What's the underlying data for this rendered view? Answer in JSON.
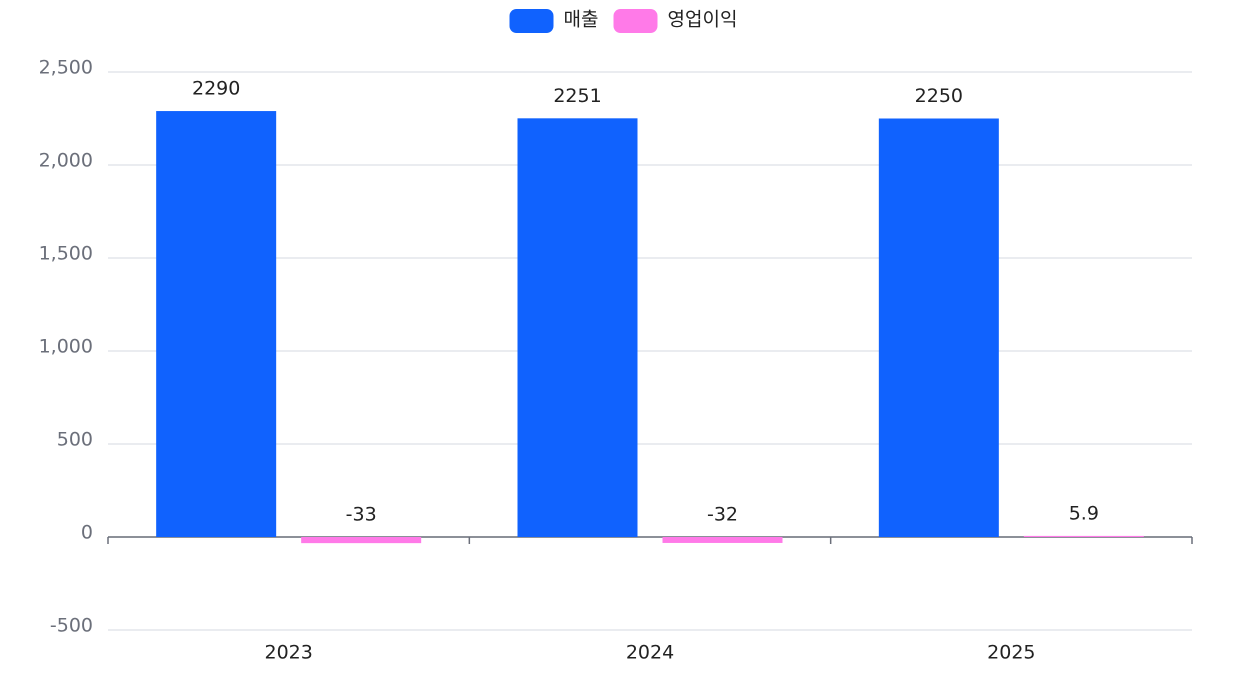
{
  "chart_data": {
    "type": "bar",
    "categories": [
      "2023",
      "2024",
      "2025"
    ],
    "series": [
      {
        "name": "매출",
        "color": "#1062fe",
        "values": [
          2290,
          2251,
          2250
        ]
      },
      {
        "name": "영업이익",
        "color": "#ff7ae8",
        "values": [
          -33,
          -32,
          5.9
        ]
      }
    ],
    "ylim": [
      -500,
      2500
    ],
    "yticks": [
      -500,
      0,
      500,
      {
        "value": 1000,
        "label": "1,000"
      },
      {
        "value": 1500,
        "label": "1,500"
      },
      {
        "value": 2000,
        "label": "2,000"
      },
      {
        "value": 2500,
        "label": "2,500"
      }
    ],
    "grid": true,
    "legend": "top"
  }
}
